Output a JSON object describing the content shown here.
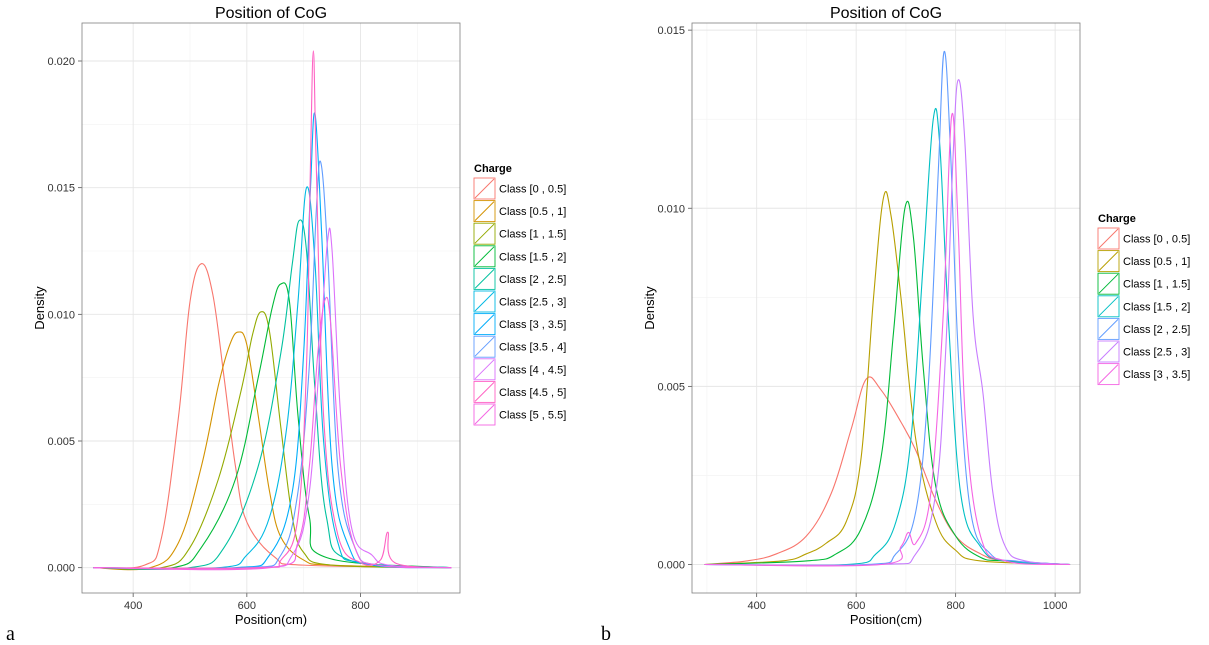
{
  "chart_data": [
    {
      "type": "line",
      "panel_label": "a",
      "title": "Position of CoG",
      "xlabel": "Position(cm)",
      "ylabel": "Density",
      "xlim": [
        310,
        975
      ],
      "ylim": [
        -0.001,
        0.0215
      ],
      "xticks": [
        400,
        600,
        800
      ],
      "yticks": [
        0.0,
        0.005,
        0.01,
        0.015,
        0.02
      ],
      "ytick_labels": [
        "0.000",
        "0.005",
        "0.010",
        "0.015",
        "0.020"
      ],
      "grid": true,
      "legend": {
        "title": "Charge",
        "placement": "right"
      },
      "series": [
        {
          "name": "Class [0 , 0.5]",
          "color": "#F8766D",
          "x": [
            330,
            420,
            450,
            480,
            500,
            520,
            540,
            560,
            580,
            600,
            650,
            700,
            960
          ],
          "y": [
            0,
            0.0001,
            0.0012,
            0.006,
            0.0105,
            0.012,
            0.0108,
            0.0075,
            0.004,
            0.0018,
            0.0004,
            0.0001,
            0
          ]
        },
        {
          "name": "Class [0.5 , 1]",
          "color": "#D39200",
          "x": [
            330,
            430,
            480,
            520,
            550,
            570,
            585,
            600,
            620,
            640,
            660,
            700,
            750,
            960
          ],
          "y": [
            0,
            0,
            0.001,
            0.004,
            0.0072,
            0.0088,
            0.0093,
            0.0088,
            0.006,
            0.003,
            0.0012,
            0.0003,
            0.0001,
            0
          ]
        },
        {
          "name": "Class [1 , 1.5]",
          "color": "#93AA00",
          "x": [
            330,
            450,
            500,
            550,
            590,
            610,
            625,
            640,
            660,
            680,
            700,
            750,
            960
          ],
          "y": [
            0,
            0,
            0.0008,
            0.0035,
            0.007,
            0.0092,
            0.0101,
            0.0093,
            0.0055,
            0.002,
            0.0006,
            0.0001,
            0
          ]
        },
        {
          "name": "Class [1.5 , 2]",
          "color": "#00BA38",
          "x": [
            330,
            470,
            520,
            580,
            620,
            645,
            660,
            675,
            690,
            710,
            740,
            960
          ],
          "y": [
            0,
            0,
            0.0008,
            0.0035,
            0.0075,
            0.0103,
            0.0112,
            0.0105,
            0.006,
            0.002,
            0.0004,
            0
          ]
        },
        {
          "name": "Class [2 , 2.5]",
          "color": "#00C19F",
          "x": [
            330,
            500,
            560,
            620,
            660,
            680,
            692,
            705,
            720,
            740,
            780,
            960
          ],
          "y": [
            0,
            0,
            0.0008,
            0.004,
            0.0085,
            0.012,
            0.0137,
            0.0125,
            0.007,
            0.002,
            0.0003,
            0
          ]
        },
        {
          "name": "Class [2.5 , 3]",
          "color": "#00B9E3",
          "x": [
            330,
            550,
            600,
            640,
            670,
            690,
            705,
            720,
            735,
            760,
            800,
            960
          ],
          "y": [
            0,
            0,
            0.0005,
            0.002,
            0.0055,
            0.0105,
            0.015,
            0.012,
            0.005,
            0.001,
            0.0002,
            0
          ]
        },
        {
          "name": "Class [3 , 3.5]",
          "color": "#00ADFA",
          "x": [
            330,
            580,
            640,
            680,
            700,
            712,
            720,
            732,
            750,
            780,
            820,
            960
          ],
          "y": [
            0,
            0,
            0.0005,
            0.003,
            0.0085,
            0.015,
            0.0179,
            0.013,
            0.004,
            0.0008,
            0.0001,
            0
          ]
        },
        {
          "name": "Class [3.5 , 4]",
          "color": "#619CFF",
          "x": [
            330,
            600,
            660,
            690,
            710,
            722,
            730,
            742,
            760,
            790,
            830,
            960
          ],
          "y": [
            0,
            0,
            0.0005,
            0.003,
            0.008,
            0.014,
            0.016,
            0.0125,
            0.004,
            0.0008,
            0.0001,
            0
          ]
        },
        {
          "name": "Class [4 , 4.5]",
          "color": "#DB72FB",
          "x": [
            330,
            620,
            680,
            710,
            730,
            742,
            750,
            765,
            785,
            820,
            850,
            960
          ],
          "y": [
            0,
            0,
            0.0005,
            0.003,
            0.009,
            0.0129,
            0.0125,
            0.006,
            0.0015,
            0.0005,
            0.0001,
            0
          ]
        },
        {
          "name": "Class [4.5 , 5]",
          "color": "#FF61C3",
          "x": [
            330,
            620,
            660,
            690,
            705,
            712,
            717,
            722,
            735,
            760,
            800,
            835,
            848,
            860,
            960
          ],
          "y": [
            0,
            0,
            0.0003,
            0.002,
            0.008,
            0.016,
            0.0204,
            0.016,
            0.006,
            0.0013,
            0.0002,
            0.0003,
            0.0014,
            0.0002,
            0
          ]
        },
        {
          "name": "Class [5 , 5.5]",
          "color": "#F564E3",
          "x": [
            330,
            640,
            690,
            710,
            725,
            738,
            748,
            765,
            790,
            830,
            960
          ],
          "y": [
            0,
            0,
            0.001,
            0.004,
            0.0085,
            0.0106,
            0.0095,
            0.004,
            0.0008,
            0.0001,
            0
          ]
        }
      ]
    },
    {
      "type": "line",
      "panel_label": "b",
      "title": "Position of CoG",
      "xlabel": "Position(cm)",
      "ylabel": "Density",
      "xlim": [
        270,
        1050
      ],
      "ylim": [
        -0.0008,
        0.0152
      ],
      "xticks": [
        400,
        600,
        800,
        1000
      ],
      "yticks": [
        0.0,
        0.005,
        0.01,
        0.015
      ],
      "ytick_labels": [
        "0.000",
        "0.005",
        "0.010",
        "0.015"
      ],
      "grid": true,
      "legend": {
        "title": "Charge",
        "placement": "right"
      },
      "series": [
        {
          "name": "Class [0 , 0.5]",
          "color": "#F8766D",
          "x": [
            295,
            380,
            440,
            500,
            550,
            590,
            620,
            650,
            690,
            720,
            760,
            800,
            850,
            900,
            1030
          ],
          "y": [
            0,
            0.0001,
            0.0003,
            0.0008,
            0.002,
            0.0038,
            0.0052,
            0.0049,
            0.004,
            0.0032,
            0.0018,
            0.0008,
            0.0003,
            0.0001,
            0
          ]
        },
        {
          "name": "Class [0.5 , 1]",
          "color": "#B79F00",
          "x": [
            295,
            450,
            500,
            540,
            580,
            610,
            635,
            655,
            670,
            690,
            720,
            760,
            800,
            850,
            1030
          ],
          "y": [
            0,
            0.0001,
            0.0003,
            0.0006,
            0.0012,
            0.003,
            0.0075,
            0.0103,
            0.0098,
            0.0075,
            0.0035,
            0.0012,
            0.0004,
            0.0001,
            0
          ]
        },
        {
          "name": "Class [1 , 1.5]",
          "color": "#00BA38",
          "x": [
            295,
            500,
            560,
            610,
            650,
            675,
            698,
            715,
            735,
            760,
            800,
            850,
            900,
            1030
          ],
          "y": [
            0,
            0.0001,
            0.0003,
            0.001,
            0.003,
            0.0065,
            0.01,
            0.0092,
            0.0055,
            0.0022,
            0.0008,
            0.0002,
            0.0001,
            0
          ]
        },
        {
          "name": "Class [1.5 , 2]",
          "color": "#00BFC4",
          "x": [
            295,
            580,
            640,
            680,
            710,
            735,
            755,
            768,
            785,
            810,
            850,
            900,
            1030
          ],
          "y": [
            0,
            0,
            0.0003,
            0.0012,
            0.0035,
            0.0085,
            0.0125,
            0.0118,
            0.007,
            0.002,
            0.0005,
            0.0001,
            0
          ]
        },
        {
          "name": "Class [2 , 2.5]",
          "color": "#619CFF",
          "x": [
            295,
            620,
            680,
            720,
            745,
            765,
            777,
            790,
            805,
            830,
            870,
            920,
            1030
          ],
          "y": [
            0,
            0,
            0.0003,
            0.0015,
            0.005,
            0.011,
            0.0144,
            0.0115,
            0.006,
            0.0015,
            0.0003,
            0.0001,
            0
          ]
        },
        {
          "name": "Class [2.5 , 3]",
          "color": "#C77CFF",
          "x": [
            295,
            650,
            720,
            760,
            780,
            795,
            805,
            818,
            835,
            855,
            875,
            900,
            940,
            1030
          ],
          "y": [
            0,
            0,
            0.0003,
            0.002,
            0.006,
            0.0115,
            0.0136,
            0.012,
            0.007,
            0.0048,
            0.002,
            0.0005,
            0.0001,
            0
          ]
        },
        {
          "name": "Class [3 , 3.5]",
          "color": "#F564E3",
          "x": [
            295,
            650,
            690,
            705,
            720,
            750,
            775,
            792,
            805,
            820,
            850,
            900,
            1030
          ],
          "y": [
            0,
            0,
            0.0005,
            0.0009,
            0.0006,
            0.002,
            0.007,
            0.0126,
            0.0095,
            0.004,
            0.0008,
            0.0001,
            0
          ]
        }
      ]
    }
  ]
}
